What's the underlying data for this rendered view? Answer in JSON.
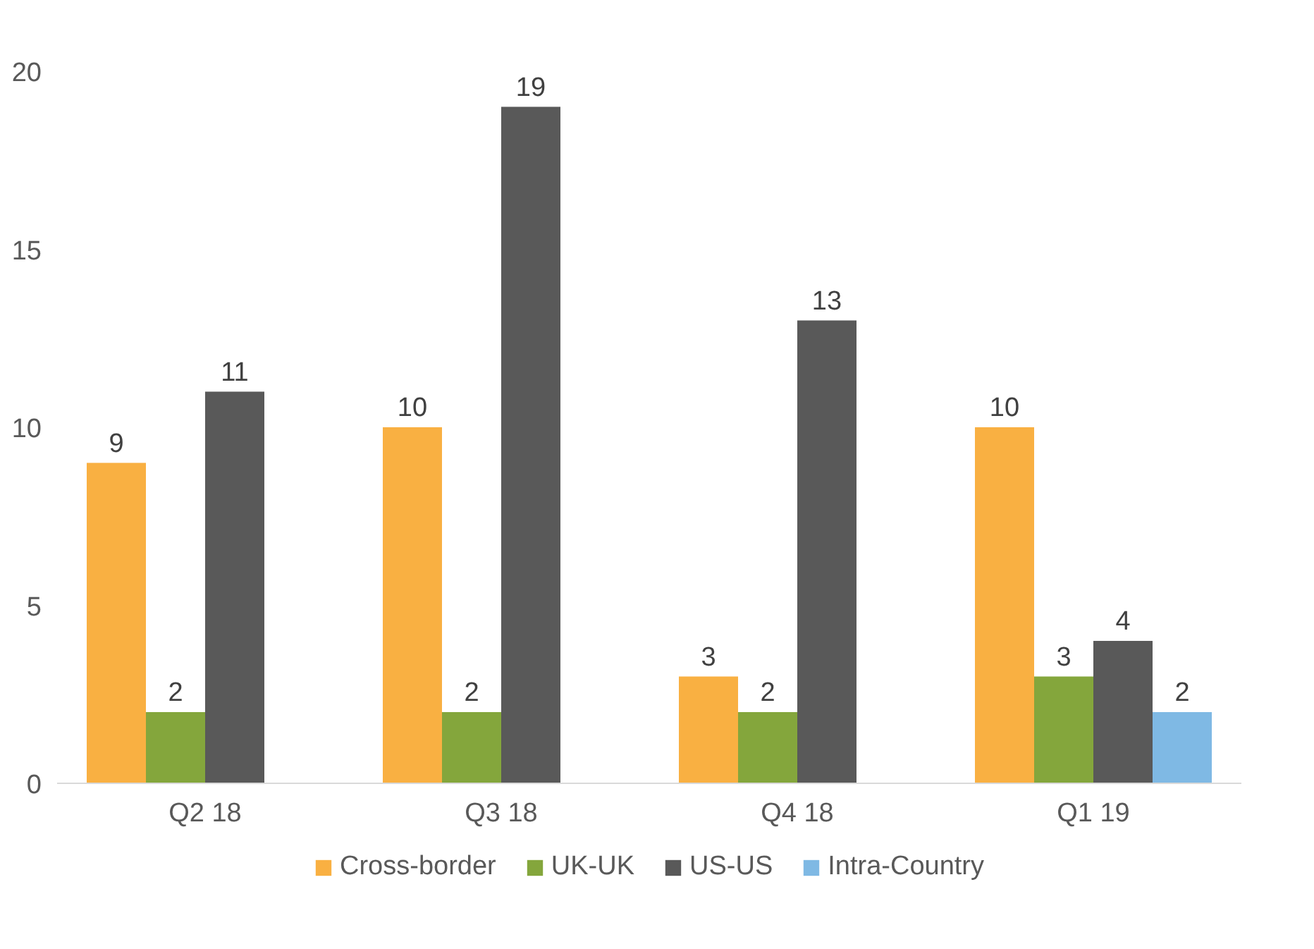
{
  "chart_data": {
    "type": "bar",
    "categories": [
      "Q2 18",
      "Q3 18",
      "Q4 18",
      "Q1 19"
    ],
    "series": [
      {
        "name": "Cross-border",
        "color": "#f9b042",
        "values": [
          9,
          10,
          3,
          10
        ]
      },
      {
        "name": "UK-UK",
        "color": "#84a63c",
        "values": [
          2,
          2,
          2,
          3
        ]
      },
      {
        "name": "US-US",
        "color": "#595959",
        "values": [
          11,
          19,
          13,
          4
        ]
      },
      {
        "name": "Intra-Country",
        "color": "#7fb9e4",
        "values": [
          null,
          null,
          null,
          2
        ]
      }
    ],
    "ylim": [
      0,
      20
    ],
    "yticks": [
      0,
      5,
      10,
      15,
      20
    ],
    "grid": false,
    "legend": "bottom",
    "data_labels": true
  }
}
